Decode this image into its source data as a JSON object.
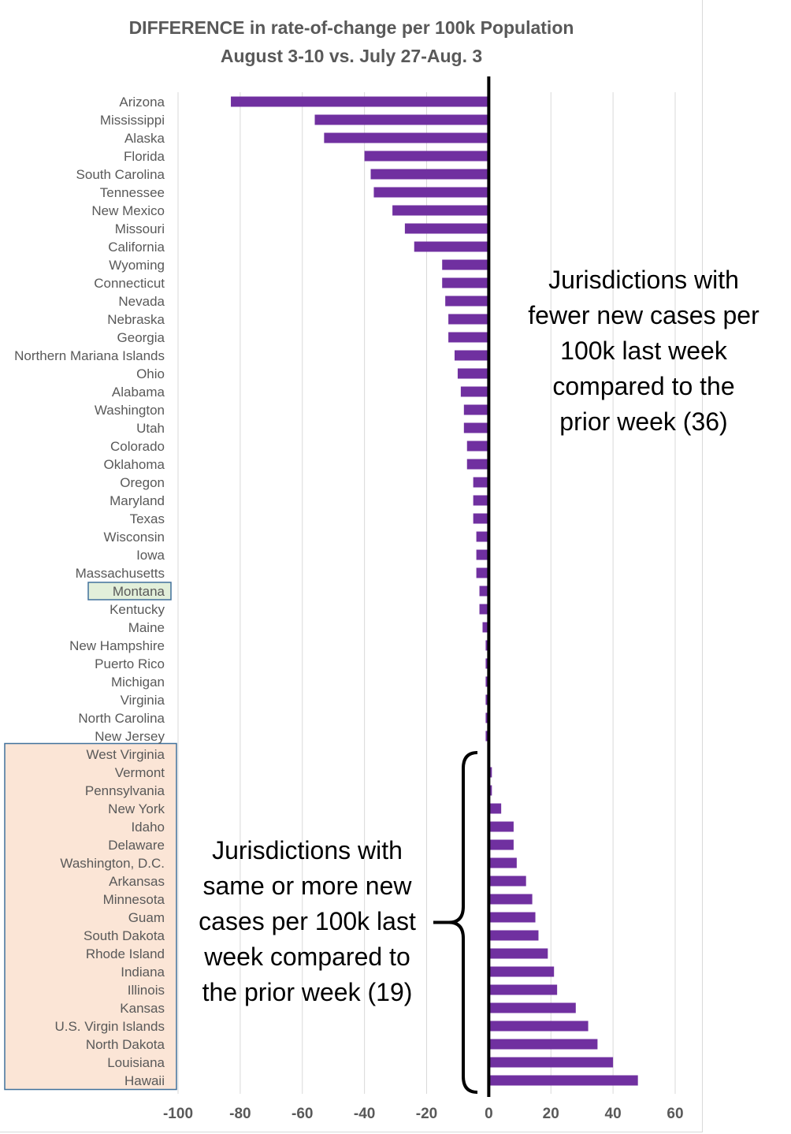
{
  "chart_data": {
    "type": "bar",
    "orientation": "horizontal",
    "title": [
      "DIFFERENCE  in rate-of-change per 100k Population",
      "August 3-10 vs. July 27-Aug. 3"
    ],
    "categories": [
      "Arizona",
      "Mississippi",
      "Alaska",
      "Florida",
      "South Carolina",
      "Tennessee",
      "New Mexico",
      "Missouri",
      "California",
      "Wyoming",
      "Connecticut",
      "Nevada",
      "Nebraska",
      "Georgia",
      "Northern Mariana Islands",
      "Ohio",
      "Alabama",
      "Washington",
      "Utah",
      "Colorado",
      "Oklahoma",
      "Oregon",
      "Maryland",
      "Texas",
      "Wisconsin",
      "Iowa",
      "Massachusetts",
      "Montana",
      "Kentucky",
      "Maine",
      "New Hampshire",
      "Puerto Rico",
      "Michigan",
      "Virginia",
      "North Carolina",
      "New Jersey",
      "West Virginia",
      "Vermont",
      "Pennsylvania",
      "New York",
      "Idaho",
      "Delaware",
      "Washington, D.C.",
      "Arkansas",
      "Minnesota",
      "Guam",
      "South Dakota",
      "Rhode Island",
      "Indiana",
      "Illinois",
      "Kansas",
      "U.S. Virgin Islands",
      "North Dakota",
      "Louisiana",
      "Hawaii"
    ],
    "values": [
      -83,
      -56,
      -53,
      -40,
      -38,
      -37,
      -31,
      -27,
      -24,
      -15,
      -15,
      -14,
      -13,
      -13,
      -11,
      -10,
      -9,
      -8,
      -8,
      -7,
      -7,
      -5,
      -5,
      -5,
      -4,
      -4,
      -4,
      -3,
      -3,
      -2,
      -1,
      -1,
      -1,
      -1,
      -1,
      -1,
      0,
      1,
      1,
      4,
      8,
      8,
      9,
      12,
      14,
      15,
      16,
      19,
      21,
      22,
      28,
      32,
      35,
      40,
      48
    ],
    "xlim": [
      -100,
      60
    ],
    "xticks": [
      "-100",
      "-80",
      "-60",
      "-40",
      "-20",
      "0",
      "20",
      "40",
      "60"
    ],
    "xlabel": "",
    "ylabel": "",
    "grid": "vertical",
    "bar_color": "#7030a0",
    "highlight_label": "Montana",
    "highlight_color": "#e2efda",
    "group_box_color": "#fbe5d6",
    "group_box_border": "#41719c",
    "annotations": [
      [
        "Jurisdictions with",
        "fewer new cases per",
        "100k last week",
        "compared to the",
        "prior week (36)"
      ],
      [
        "Jurisdictions with",
        "same or more new",
        "cases per 100k last",
        "week compared to",
        "the prior week (19)"
      ]
    ]
  }
}
